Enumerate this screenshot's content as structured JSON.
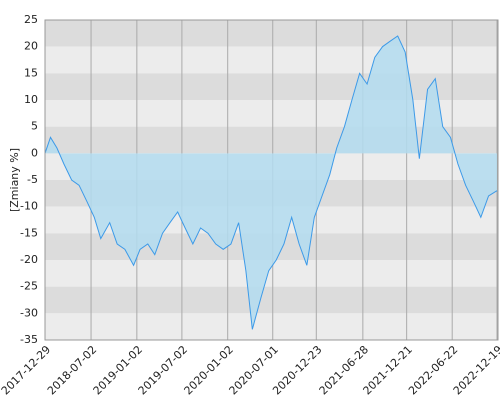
{
  "chart_data": {
    "type": "area",
    "y_label": "[Zmiany %]",
    "x": [
      "2017-12-29",
      "2018-01-20",
      "2018-02-15",
      "2018-03-15",
      "2018-04-15",
      "2018-05-15",
      "2018-06-15",
      "2018-07-15",
      "2018-08-10",
      "2018-09-15",
      "2018-10-15",
      "2018-11-15",
      "2018-12-20",
      "2019-01-15",
      "2019-02-15",
      "2019-03-15",
      "2019-04-15",
      "2019-05-15",
      "2019-06-15",
      "2019-07-15",
      "2019-08-15",
      "2019-09-15",
      "2019-10-15",
      "2019-11-15",
      "2019-12-15",
      "2020-01-15",
      "2020-02-15",
      "2020-03-15",
      "2020-04-10",
      "2020-05-15",
      "2020-06-15",
      "2020-07-15",
      "2020-08-15",
      "2020-09-15",
      "2020-10-15",
      "2020-11-15",
      "2020-12-15",
      "2021-01-15",
      "2021-02-15",
      "2021-03-15",
      "2021-04-15",
      "2021-05-15",
      "2021-06-15",
      "2021-07-15",
      "2021-08-15",
      "2021-09-15",
      "2021-10-15",
      "2021-11-15",
      "2021-12-15",
      "2022-01-15",
      "2022-02-10",
      "2022-03-15",
      "2022-04-15",
      "2022-05-15",
      "2022-06-15",
      "2022-07-15",
      "2022-08-15",
      "2022-09-15",
      "2022-10-15",
      "2022-11-15",
      "2022-12-19"
    ],
    "series": [
      {
        "name": "Zmiany",
        "color": "#3d9ae8",
        "fill": "#b3dcf0",
        "values": [
          0,
          3,
          1,
          -2,
          -5,
          -6,
          -9,
          -12,
          -16,
          -13,
          -17,
          -18,
          -21,
          -18,
          -17,
          -19,
          -15,
          -13,
          -11,
          -14,
          -17,
          -14,
          -15,
          -17,
          -18,
          -17,
          -13,
          -22,
          -33,
          -27,
          -22,
          -20,
          -17,
          -12,
          -17,
          -21,
          -12,
          -8,
          -4,
          1,
          5,
          10,
          15,
          13,
          18,
          20,
          21,
          22,
          19,
          10,
          -1,
          12,
          14,
          5,
          3,
          -2,
          -6,
          -9,
          -12,
          -8,
          -7
        ]
      }
    ],
    "xlim": [
      "2017-12-29",
      "2022-12-23"
    ],
    "xticks": [
      "2017-12-29",
      "2018-07-02",
      "2019-01-02",
      "2019-07-02",
      "2020-01-02",
      "2020-07-01",
      "2020-12-23",
      "2021-06-28",
      "2021-12-21",
      "2022-06-22",
      "2022-12-19"
    ],
    "ylim": [
      -35,
      25
    ],
    "yticks": [
      25,
      20,
      15,
      10,
      5,
      0,
      -5,
      -10,
      -15,
      -20,
      -25,
      -30,
      -35
    ],
    "grid": true
  }
}
